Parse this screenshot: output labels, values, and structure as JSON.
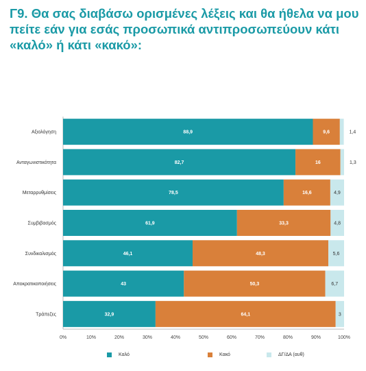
{
  "title": "Γ9. Θα σας διαβάσω ορισμένες λέξεις και θα ήθελα να μου πείτε εάν για εσάς προσωπικά αντιπροσωπεύουν κάτι «καλό» ή κάτι «κακό»:",
  "chart_data": {
    "type": "bar",
    "orientation": "horizontal",
    "stacked": true,
    "categories": [
      "Αξιολόγηση",
      "Ανταγωνιστικότητα",
      "Μεταρρυθμίσεις",
      "Συμβιβασμός",
      "Συνδικαλισμός",
      "Αποκρατικοποιήσεις",
      "Τράπεζες"
    ],
    "series": [
      {
        "name": "Καλό",
        "color": "#1a9aa6",
        "values": [
          88.9,
          82.7,
          78.5,
          61.9,
          46.1,
          43,
          32.9
        ],
        "labels": [
          "88,9",
          "82,7",
          "78,5",
          "61,9",
          "46,1",
          "43",
          "32,9"
        ]
      },
      {
        "name": "Κακό",
        "color": "#d9803a",
        "values": [
          9.6,
          16,
          16.6,
          33.3,
          48.3,
          50.3,
          64.1
        ],
        "labels": [
          "9,6",
          "16",
          "16,6",
          "33,3",
          "48,3",
          "50,3",
          "64,1"
        ]
      },
      {
        "name": "ΔΓ/ΔΑ (αυθ)",
        "color": "#c9e8ec",
        "values": [
          1.4,
          1.3,
          4.9,
          4.8,
          5.6,
          6.7,
          3
        ],
        "labels": [
          "1,4",
          "1,3",
          "4,9",
          "4,8",
          "5,6",
          "6,7",
          "3"
        ]
      }
    ],
    "x_ticks": [
      "0%",
      "10%",
      "20%",
      "30%",
      "40%",
      "50%",
      "60%",
      "70%",
      "80%",
      "90%",
      "100%"
    ],
    "xlim": [
      0,
      100
    ],
    "grid": false,
    "legend_position": "bottom"
  }
}
